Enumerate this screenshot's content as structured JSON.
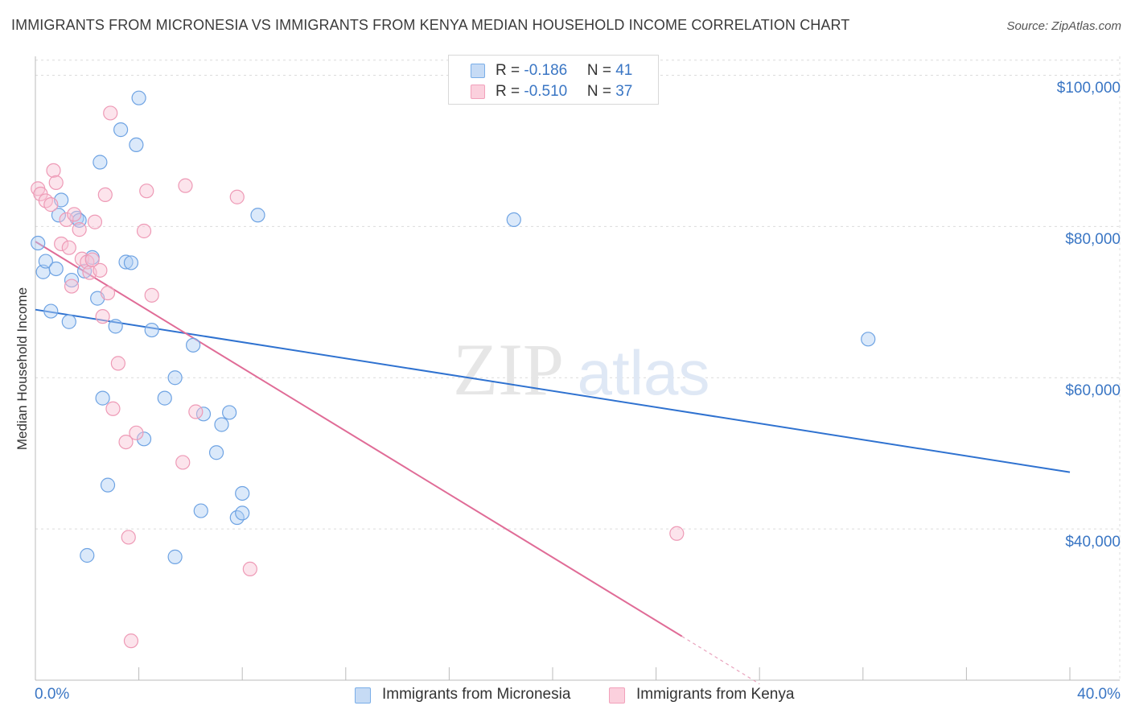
{
  "title": "IMMIGRANTS FROM MICRONESIA VS IMMIGRANTS FROM KENYA MEDIAN HOUSEHOLD INCOME CORRELATION CHART",
  "source": "Source: ZipAtlas.com",
  "watermark": {
    "zip": "ZIP",
    "atlas": "atlas"
  },
  "stats": {
    "rows": [
      {
        "r_label": "R = ",
        "r_value": "-0.186",
        "n_label": "N = ",
        "n_value": "41",
        "color": "#7aaee8"
      },
      {
        "r_label": "R = ",
        "r_value": "-0.510",
        "n_label": "N = ",
        "n_value": "37",
        "color": "#f2a1bb"
      }
    ]
  },
  "chart_data": {
    "type": "scatter",
    "title": "IMMIGRANTS FROM MICRONESIA VS IMMIGRANTS FROM KENYA MEDIAN HOUSEHOLD INCOME CORRELATION CHART",
    "xlabel": "",
    "ylabel": "Median Household Income",
    "xlim": [
      0,
      40
    ],
    "ylim": [
      20000,
      102500
    ],
    "x_tick_labels": [
      "0.0%",
      "40.0%"
    ],
    "y_ticks": [
      40000,
      60000,
      80000,
      100000
    ],
    "y_tick_labels": [
      "$40,000",
      "$60,000",
      "$80,000",
      "$100,000"
    ],
    "grid": true,
    "legend_position": "bottom",
    "series": [
      {
        "name": "Immigrants from Micronesia",
        "color": "#7aaee8",
        "points": [
          [
            0.1,
            77800
          ],
          [
            0.3,
            74000
          ],
          [
            0.4,
            75400
          ],
          [
            0.6,
            68800
          ],
          [
            0.8,
            74400
          ],
          [
            0.9,
            81500
          ],
          [
            1.0,
            83500
          ],
          [
            1.3,
            67400
          ],
          [
            1.4,
            72900
          ],
          [
            1.6,
            81100
          ],
          [
            1.7,
            80800
          ],
          [
            1.9,
            74100
          ],
          [
            2.2,
            75900
          ],
          [
            2.4,
            70500
          ],
          [
            2.5,
            88500
          ],
          [
            2.6,
            57300
          ],
          [
            2.8,
            45800
          ],
          [
            3.1,
            66800
          ],
          [
            3.3,
            92800
          ],
          [
            3.5,
            75300
          ],
          [
            3.7,
            75200
          ],
          [
            3.9,
            90800
          ],
          [
            4.0,
            97000
          ],
          [
            4.2,
            51900
          ],
          [
            4.5,
            66300
          ],
          [
            5.0,
            57300
          ],
          [
            5.4,
            60000
          ],
          [
            6.1,
            64300
          ],
          [
            6.4,
            42400
          ],
          [
            6.5,
            55200
          ],
          [
            7.0,
            50100
          ],
          [
            7.2,
            53800
          ],
          [
            7.5,
            55400
          ],
          [
            7.8,
            41500
          ],
          [
            8.0,
            42100
          ],
          [
            8.0,
            44700
          ],
          [
            8.6,
            81500
          ],
          [
            18.5,
            80900
          ],
          [
            32.2,
            65100
          ],
          [
            2.0,
            36500
          ],
          [
            5.4,
            36300
          ]
        ]
      },
      {
        "name": "Immigrants from Kenya",
        "color": "#f2a1bb",
        "points": [
          [
            0.1,
            85000
          ],
          [
            0.2,
            84300
          ],
          [
            0.4,
            83400
          ],
          [
            0.6,
            82900
          ],
          [
            0.7,
            87400
          ],
          [
            0.8,
            85800
          ],
          [
            1.0,
            77700
          ],
          [
            1.2,
            80900
          ],
          [
            1.3,
            77200
          ],
          [
            1.4,
            72100
          ],
          [
            1.5,
            81600
          ],
          [
            1.7,
            79600
          ],
          [
            1.8,
            75700
          ],
          [
            2.0,
            75300
          ],
          [
            2.1,
            73900
          ],
          [
            2.3,
            80600
          ],
          [
            2.5,
            74200
          ],
          [
            2.6,
            68100
          ],
          [
            2.7,
            84200
          ],
          [
            2.8,
            71200
          ],
          [
            2.9,
            95000
          ],
          [
            3.0,
            55900
          ],
          [
            3.2,
            61900
          ],
          [
            3.5,
            51500
          ],
          [
            3.6,
            38900
          ],
          [
            3.9,
            52700
          ],
          [
            4.2,
            79400
          ],
          [
            4.3,
            84700
          ],
          [
            4.5,
            70900
          ],
          [
            5.7,
            48800
          ],
          [
            5.8,
            85400
          ],
          [
            6.2,
            55500
          ],
          [
            7.8,
            83900
          ],
          [
            8.3,
            34700
          ],
          [
            24.8,
            39400
          ],
          [
            3.7,
            25200
          ],
          [
            2.2,
            75600
          ]
        ]
      }
    ],
    "trend_lines": [
      {
        "series": "Immigrants from Micronesia",
        "x": [
          0,
          40
        ],
        "y": [
          69000,
          47500
        ]
      },
      {
        "series": "Immigrants from Kenya",
        "x": [
          0,
          25.0
        ],
        "y": [
          78000,
          25800
        ],
        "dashed_extension_to": [
          28.0,
          19500
        ]
      }
    ]
  },
  "legend": {
    "items": [
      {
        "label": "Immigrants from Micronesia",
        "color": "#7aaee8"
      },
      {
        "label": "Immigrants from Kenya",
        "color": "#f2a1bb"
      }
    ]
  }
}
